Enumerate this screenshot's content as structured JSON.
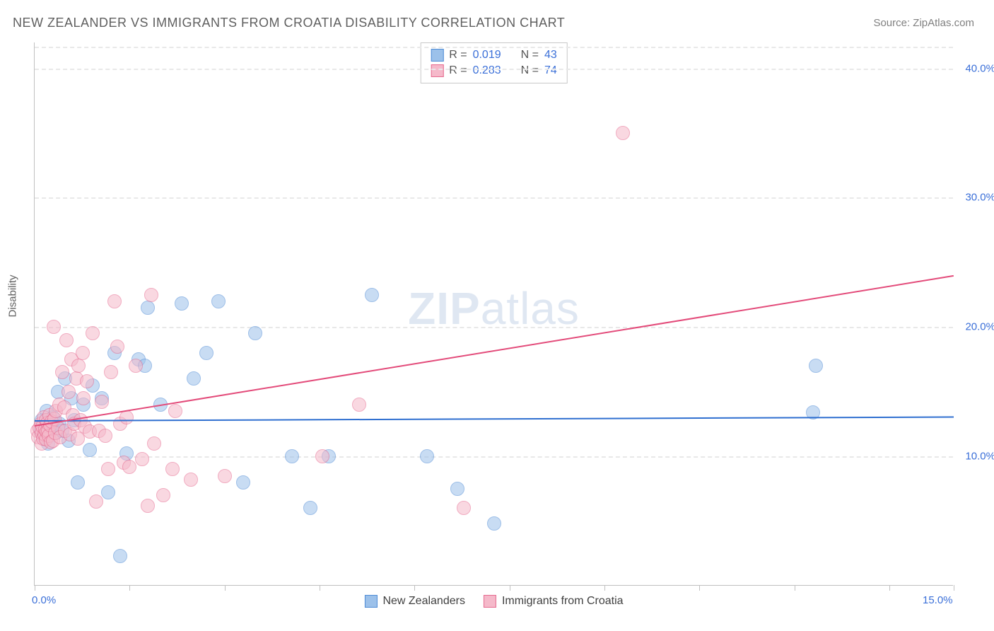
{
  "title": "NEW ZEALANDER VS IMMIGRANTS FROM CROATIA DISABILITY CORRELATION CHART",
  "source": "Source: ZipAtlas.com",
  "watermark": "ZIPatlas",
  "ylabel": "Disability",
  "chart": {
    "type": "scatter",
    "background_color": "#ffffff",
    "grid_color": "#e8e8e8",
    "axis_color": "#c0c0c0",
    "tick_label_color": "#3a6fd8",
    "tick_fontsize": 15,
    "ylabel_color": "#606060",
    "xlim": [
      0,
      15
    ],
    "ylim": [
      0,
      42
    ],
    "xticks": [
      0,
      1.55,
      3.1,
      4.65,
      6.2,
      7.75,
      9.3,
      10.85,
      12.4,
      13.95,
      15
    ],
    "xtick_labels": {
      "0": "0.0%",
      "15": "15.0%"
    },
    "yticks": [
      10,
      20,
      30,
      40
    ],
    "ytick_labels": {
      "10": "10.0%",
      "20": "20.0%",
      "30": "30.0%",
      "40": "40.0%"
    },
    "marker_radius": 10,
    "marker_opacity": 0.55,
    "marker_border_width": 1.5,
    "trend_line_width": 2,
    "series": [
      {
        "name": "New Zealanders",
        "color_fill": "#9cc1ea",
        "color_stroke": "#4f8cd6",
        "trend_color": "#2f6fd0",
        "R": "0.019",
        "N": "43",
        "trend": {
          "x1": 0,
          "y1": 12.8,
          "x2": 15,
          "y2": 13.1
        },
        "points": [
          [
            0.1,
            12.0
          ],
          [
            0.12,
            12.8
          ],
          [
            0.15,
            11.5
          ],
          [
            0.2,
            13.5
          ],
          [
            0.22,
            11.0
          ],
          [
            0.25,
            12.2
          ],
          [
            0.3,
            13.0
          ],
          [
            0.35,
            11.8
          ],
          [
            0.38,
            15.0
          ],
          [
            0.4,
            12.5
          ],
          [
            0.45,
            12.0
          ],
          [
            0.5,
            16.0
          ],
          [
            0.55,
            11.2
          ],
          [
            0.6,
            14.5
          ],
          [
            0.65,
            12.8
          ],
          [
            0.7,
            8.0
          ],
          [
            0.8,
            14.0
          ],
          [
            0.9,
            10.5
          ],
          [
            0.95,
            15.5
          ],
          [
            1.1,
            14.5
          ],
          [
            1.2,
            7.2
          ],
          [
            1.3,
            18.0
          ],
          [
            1.4,
            2.3
          ],
          [
            1.5,
            10.2
          ],
          [
            1.7,
            17.5
          ],
          [
            1.8,
            17.0
          ],
          [
            1.85,
            21.5
          ],
          [
            2.05,
            14.0
          ],
          [
            2.4,
            21.8
          ],
          [
            2.6,
            16.0
          ],
          [
            2.8,
            18.0
          ],
          [
            3.0,
            22.0
          ],
          [
            3.4,
            8.0
          ],
          [
            3.6,
            19.5
          ],
          [
            4.2,
            10.0
          ],
          [
            4.5,
            6.0
          ],
          [
            4.8,
            10.0
          ],
          [
            5.5,
            22.5
          ],
          [
            6.4,
            10.0
          ],
          [
            6.9,
            7.5
          ],
          [
            7.5,
            4.8
          ],
          [
            12.7,
            13.4
          ],
          [
            12.75,
            17.0
          ]
        ]
      },
      {
        "name": "Immigrants from Croatia",
        "color_fill": "#f5b9ca",
        "color_stroke": "#e66a8f",
        "trend_color": "#e34b7a",
        "R": "0.283",
        "N": "74",
        "trend": {
          "x1": 0,
          "y1": 12.4,
          "x2": 15,
          "y2": 24.0
        },
        "points": [
          [
            0.05,
            12.0
          ],
          [
            0.06,
            11.5
          ],
          [
            0.08,
            12.2
          ],
          [
            0.1,
            12.5
          ],
          [
            0.11,
            11.0
          ],
          [
            0.12,
            11.8
          ],
          [
            0.13,
            12.3
          ],
          [
            0.14,
            11.4
          ],
          [
            0.15,
            13.0
          ],
          [
            0.16,
            11.7
          ],
          [
            0.17,
            12.1
          ],
          [
            0.18,
            12.8
          ],
          [
            0.19,
            11.3
          ],
          [
            0.2,
            11.9
          ],
          [
            0.21,
            12.6
          ],
          [
            0.22,
            12.0
          ],
          [
            0.23,
            11.6
          ],
          [
            0.24,
            13.2
          ],
          [
            0.25,
            12.4
          ],
          [
            0.26,
            11.1
          ],
          [
            0.28,
            12.7
          ],
          [
            0.3,
            11.2
          ],
          [
            0.31,
            20.0
          ],
          [
            0.32,
            12.9
          ],
          [
            0.34,
            11.8
          ],
          [
            0.35,
            13.5
          ],
          [
            0.38,
            12.2
          ],
          [
            0.4,
            14.0
          ],
          [
            0.42,
            11.5
          ],
          [
            0.45,
            16.5
          ],
          [
            0.48,
            13.8
          ],
          [
            0.5,
            12.0
          ],
          [
            0.52,
            19.0
          ],
          [
            0.55,
            15.0
          ],
          [
            0.58,
            11.7
          ],
          [
            0.6,
            17.5
          ],
          [
            0.62,
            13.2
          ],
          [
            0.65,
            12.5
          ],
          [
            0.68,
            16.0
          ],
          [
            0.7,
            11.4
          ],
          [
            0.72,
            17.0
          ],
          [
            0.75,
            12.8
          ],
          [
            0.78,
            18.0
          ],
          [
            0.8,
            14.5
          ],
          [
            0.82,
            12.3
          ],
          [
            0.85,
            15.8
          ],
          [
            0.9,
            11.9
          ],
          [
            0.95,
            19.5
          ],
          [
            1.0,
            6.5
          ],
          [
            1.05,
            12.0
          ],
          [
            1.1,
            14.2
          ],
          [
            1.15,
            11.6
          ],
          [
            1.2,
            9.0
          ],
          [
            1.25,
            16.5
          ],
          [
            1.3,
            22.0
          ],
          [
            1.35,
            18.5
          ],
          [
            1.4,
            12.5
          ],
          [
            1.45,
            9.5
          ],
          [
            1.5,
            13.0
          ],
          [
            1.55,
            9.2
          ],
          [
            1.65,
            17.0
          ],
          [
            1.75,
            9.8
          ],
          [
            1.85,
            6.2
          ],
          [
            1.9,
            22.5
          ],
          [
            1.95,
            11.0
          ],
          [
            2.1,
            7.0
          ],
          [
            2.25,
            9.0
          ],
          [
            2.3,
            13.5
          ],
          [
            2.55,
            8.2
          ],
          [
            3.1,
            8.5
          ],
          [
            4.7,
            10.0
          ],
          [
            5.3,
            14.0
          ],
          [
            7.0,
            6.0
          ],
          [
            9.6,
            35.0
          ]
        ]
      }
    ]
  },
  "legend_top": {
    "border_color": "#c8c8c8",
    "rows": [
      {
        "swatch_fill": "#9cc1ea",
        "swatch_stroke": "#4f8cd6",
        "r_label": "R =",
        "r_val": "0.019",
        "n_label": "N =",
        "n_val": "43"
      },
      {
        "swatch_fill": "#f5b9ca",
        "swatch_stroke": "#e66a8f",
        "r_label": "R =",
        "r_val": "0.283",
        "n_label": "N =",
        "n_val": "74"
      }
    ]
  },
  "legend_bottom": [
    {
      "swatch_fill": "#9cc1ea",
      "swatch_stroke": "#4f8cd6",
      "label": "New Zealanders"
    },
    {
      "swatch_fill": "#f5b9ca",
      "swatch_stroke": "#e66a8f",
      "label": "Immigrants from Croatia"
    }
  ]
}
